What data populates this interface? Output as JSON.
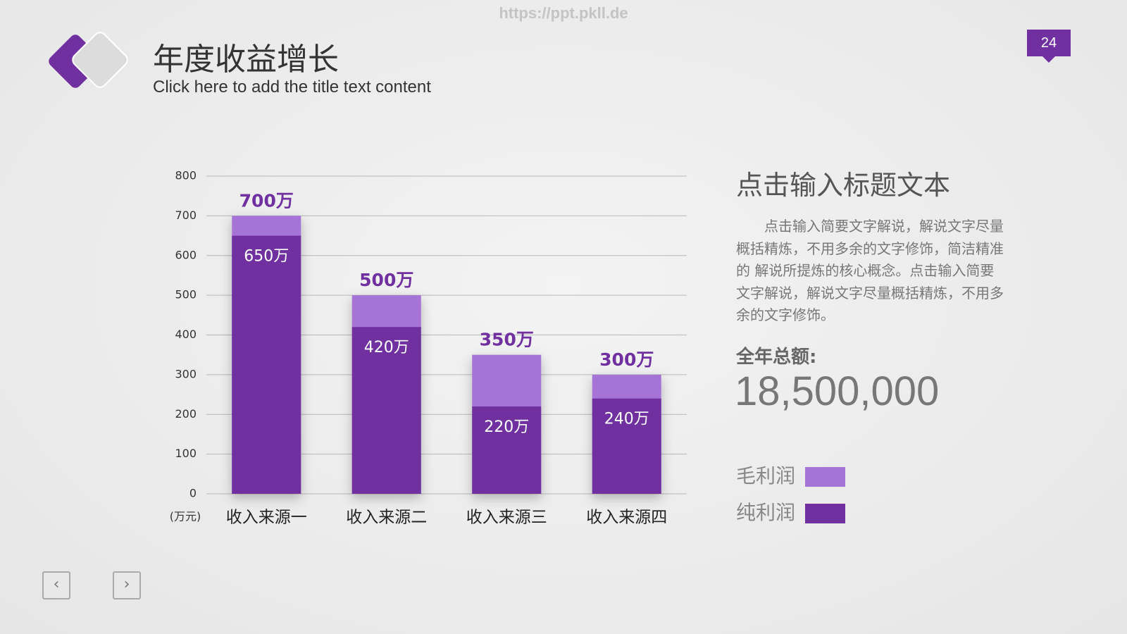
{
  "watermark": "https://ppt.pkll.de",
  "page_number": "24",
  "header": {
    "title": "年度收益增长",
    "subtitle": "Click here to add the title text content"
  },
  "chart_data": {
    "type": "bar",
    "categories": [
      "收入来源一",
      "收入来源二",
      "收入来源三",
      "收入来源四"
    ],
    "series": [
      {
        "name": "毛利润",
        "color": "#a673d6",
        "values": [
          700,
          500,
          350,
          300
        ],
        "value_labels": [
          "700万",
          "500万",
          "350万",
          "300万"
        ]
      },
      {
        "name": "纯利润",
        "color": "#7030a0",
        "values": [
          650,
          420,
          220,
          240
        ],
        "value_labels": [
          "650万",
          "420万",
          "220万",
          "240万"
        ]
      }
    ],
    "y_axis_label": "(万元)",
    "ylim": [
      0,
      800
    ],
    "yticks": [
      0,
      100,
      200,
      300,
      400,
      500,
      600,
      700,
      800
    ],
    "grid": true,
    "overlap": true,
    "legend_position": "right"
  },
  "side": {
    "heading": "点击输入标题文本",
    "paragraph": "点击输入简要文字解说，解说文字尽量概括精炼，不用多余的文字修饰，简洁精准的 解说所提炼的核心概念。点击输入简要文字解说，解说文字尽量概括精炼，不用多余的文字修饰。",
    "total_label": "全年总额:",
    "total_value": "18,500,000"
  }
}
